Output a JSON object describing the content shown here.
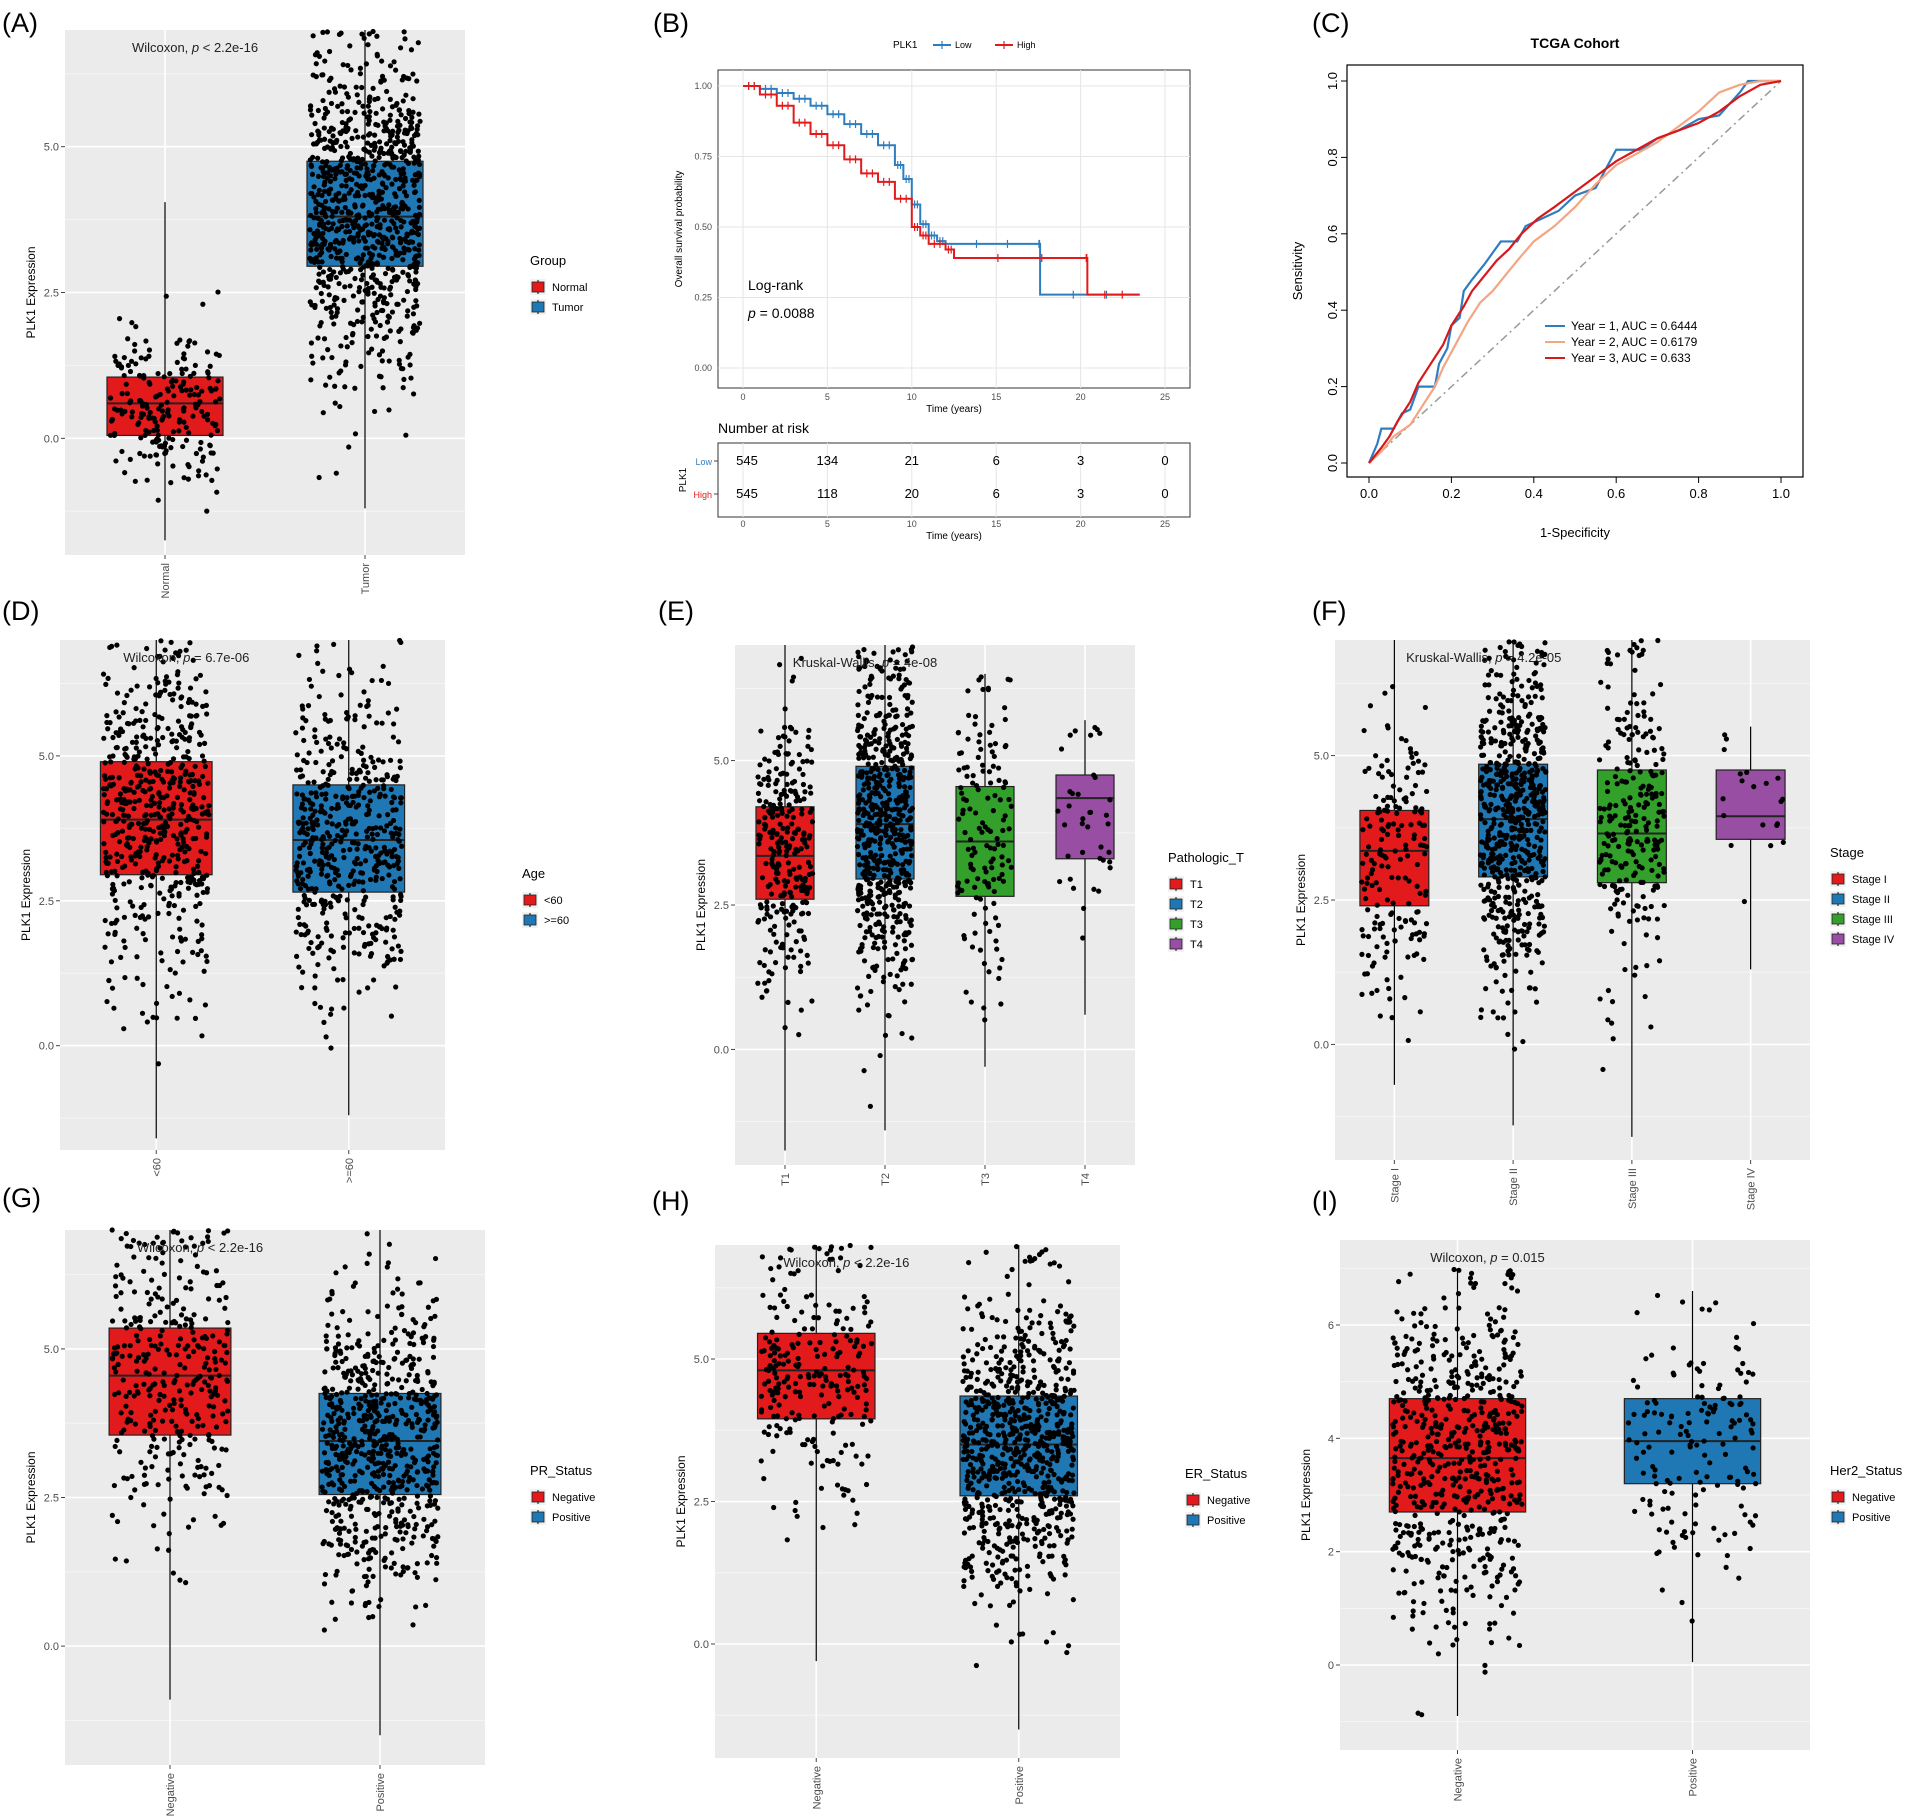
{
  "colors": {
    "red": "#E31A1C",
    "blue": "#1F78B4",
    "green": "#33A02C",
    "purple": "#984EA3",
    "panel_bg": "#EBEBEB",
    "km_low": "#2E7EBF",
    "km_high": "#E31A1C",
    "roc_y1": "#2E7EBF",
    "roc_y2": "#F4A582",
    "roc_y3": "#D7191C"
  },
  "chart_data": [
    {
      "id": "A",
      "type": "box",
      "panel_label": "(A)",
      "stat_prefix": "Wilcoxon, ",
      "stat_p": "p",
      "stat_suffix": " < 2.2e-16",
      "ylabel": "PLK1 Expression",
      "ylim": [
        -2.0,
        7.0
      ],
      "yticks": [
        0.0,
        2.5,
        5.0
      ],
      "ytick_labels": [
        "0.0",
        "2.5",
        "5.0"
      ],
      "categories": [
        "Normal",
        "Tumor"
      ],
      "legend_title": "Group",
      "legend_labels": [
        "Normal",
        "Tumor"
      ],
      "fill": [
        "red",
        "blue"
      ],
      "boxes": [
        {
          "q1": 0.05,
          "median": 0.6,
          "q3": 1.05,
          "min": -1.75,
          "max": 4.05,
          "n": 220
        },
        {
          "q1": 2.95,
          "median": 3.8,
          "q3": 4.75,
          "min": -1.2,
          "max": 7.0,
          "n": 900
        }
      ]
    },
    {
      "id": "B",
      "type": "km",
      "panel_label": "(B)",
      "legend_title": "PLK1",
      "legend_labels": [
        "Low",
        "High"
      ],
      "ylabel": "Overall survival probability",
      "xlabel": "Time (years)",
      "xlim": [
        0,
        25
      ],
      "ylim": [
        0,
        1
      ],
      "xticks": [
        0,
        5,
        10,
        15,
        20,
        25
      ],
      "xtick_labels": [
        "0",
        "5",
        "10",
        "15",
        "20",
        "25"
      ],
      "yticks": [
        0,
        0.25,
        0.5,
        0.75,
        1.0
      ],
      "ytick_labels": [
        "0.00",
        "0.25",
        "0.50",
        "0.75",
        "1.00"
      ],
      "annot_logrank": "Log-rank",
      "annot_p_italic": "p",
      "annot_p_value": " = 0.0088",
      "series": [
        {
          "name": "Low",
          "points": [
            [
              0,
              1.0
            ],
            [
              1,
              0.99
            ],
            [
              2,
              0.975
            ],
            [
              3,
              0.955
            ],
            [
              4,
              0.93
            ],
            [
              5,
              0.9
            ],
            [
              6,
              0.865
            ],
            [
              7,
              0.83
            ],
            [
              8,
              0.79
            ],
            [
              9,
              0.72
            ],
            [
              9.5,
              0.67
            ],
            [
              10,
              0.58
            ],
            [
              10.5,
              0.51
            ],
            [
              11,
              0.47
            ],
            [
              11.5,
              0.45
            ],
            [
              12,
              0.44
            ],
            [
              17.5,
              0.44
            ],
            [
              17.6,
              0.26
            ],
            [
              23.5,
              0.26
            ]
          ]
        },
        {
          "name": "High",
          "points": [
            [
              0,
              1.0
            ],
            [
              1,
              0.97
            ],
            [
              2,
              0.93
            ],
            [
              3,
              0.87
            ],
            [
              4,
              0.83
            ],
            [
              5,
              0.79
            ],
            [
              6,
              0.74
            ],
            [
              7,
              0.69
            ],
            [
              8,
              0.66
            ],
            [
              9,
              0.6
            ],
            [
              10,
              0.5
            ],
            [
              10.5,
              0.47
            ],
            [
              11,
              0.44
            ],
            [
              12,
              0.42
            ],
            [
              12.5,
              0.39
            ],
            [
              20.3,
              0.39
            ],
            [
              20.4,
              0.26
            ],
            [
              23.5,
              0.26
            ]
          ]
        }
      ],
      "risk_title": "Number at risk",
      "risk_ylabel": "PLK1",
      "risk_groups": [
        "Low",
        "High"
      ],
      "risk_values": [
        [
          "545",
          "134",
          "21",
          "6",
          "3",
          "0"
        ],
        [
          "545",
          "118",
          "20",
          "6",
          "3",
          "0"
        ]
      ]
    },
    {
      "id": "C",
      "type": "roc",
      "panel_label": "(C)",
      "title": "TCGA Cohort",
      "xlabel": "1-Specificity",
      "ylabel": "Sensitivity",
      "ticks": [
        0.0,
        0.2,
        0.4,
        0.6,
        0.8,
        1.0
      ],
      "tick_labels": [
        "0.0",
        "0.2",
        "0.4",
        "0.6",
        "0.8",
        "1.0"
      ],
      "series": [
        {
          "name": "Year = 1,  AUC = 0.6444",
          "color": "roc_y1",
          "points": [
            [
              0,
              0
            ],
            [
              0.02,
              0.05
            ],
            [
              0.03,
              0.09
            ],
            [
              0.06,
              0.09
            ],
            [
              0.08,
              0.13
            ],
            [
              0.1,
              0.14
            ],
            [
              0.12,
              0.2
            ],
            [
              0.16,
              0.2
            ],
            [
              0.17,
              0.26
            ],
            [
              0.19,
              0.3
            ],
            [
              0.2,
              0.36
            ],
            [
              0.22,
              0.38
            ],
            [
              0.23,
              0.45
            ],
            [
              0.25,
              0.48
            ],
            [
              0.28,
              0.52
            ],
            [
              0.3,
              0.55
            ],
            [
              0.32,
              0.58
            ],
            [
              0.36,
              0.58
            ],
            [
              0.38,
              0.62
            ],
            [
              0.42,
              0.64
            ],
            [
              0.46,
              0.66
            ],
            [
              0.5,
              0.7
            ],
            [
              0.55,
              0.72
            ],
            [
              0.58,
              0.78
            ],
            [
              0.6,
              0.82
            ],
            [
              0.66,
              0.82
            ],
            [
              0.7,
              0.85
            ],
            [
              0.75,
              0.87
            ],
            [
              0.8,
              0.9
            ],
            [
              0.85,
              0.91
            ],
            [
              0.9,
              0.97
            ],
            [
              0.92,
              1.0
            ],
            [
              1.0,
              1.0
            ]
          ]
        },
        {
          "name": "Year = 2,  AUC = 0.6179",
          "color": "roc_y2",
          "points": [
            [
              0,
              0
            ],
            [
              0.03,
              0.03
            ],
            [
              0.06,
              0.07
            ],
            [
              0.1,
              0.1
            ],
            [
              0.13,
              0.15
            ],
            [
              0.16,
              0.2
            ],
            [
              0.18,
              0.25
            ],
            [
              0.21,
              0.31
            ],
            [
              0.24,
              0.37
            ],
            [
              0.27,
              0.42
            ],
            [
              0.3,
              0.45
            ],
            [
              0.33,
              0.49
            ],
            [
              0.36,
              0.53
            ],
            [
              0.4,
              0.58
            ],
            [
              0.45,
              0.62
            ],
            [
              0.5,
              0.67
            ],
            [
              0.55,
              0.73
            ],
            [
              0.6,
              0.78
            ],
            [
              0.65,
              0.81
            ],
            [
              0.7,
              0.84
            ],
            [
              0.75,
              0.88
            ],
            [
              0.8,
              0.92
            ],
            [
              0.85,
              0.97
            ],
            [
              0.9,
              0.99
            ],
            [
              0.95,
              1.0
            ],
            [
              1.0,
              1.0
            ]
          ]
        },
        {
          "name": "Year = 3,  AUC = 0.633",
          "color": "roc_y3",
          "points": [
            [
              0,
              0
            ],
            [
              0.03,
              0.04
            ],
            [
              0.05,
              0.07
            ],
            [
              0.07,
              0.11
            ],
            [
              0.1,
              0.16
            ],
            [
              0.12,
              0.21
            ],
            [
              0.15,
              0.26
            ],
            [
              0.18,
              0.31
            ],
            [
              0.2,
              0.36
            ],
            [
              0.23,
              0.41
            ],
            [
              0.25,
              0.45
            ],
            [
              0.28,
              0.49
            ],
            [
              0.31,
              0.53
            ],
            [
              0.34,
              0.56
            ],
            [
              0.37,
              0.6
            ],
            [
              0.41,
              0.64
            ],
            [
              0.45,
              0.67
            ],
            [
              0.5,
              0.71
            ],
            [
              0.55,
              0.75
            ],
            [
              0.6,
              0.79
            ],
            [
              0.65,
              0.82
            ],
            [
              0.7,
              0.85
            ],
            [
              0.75,
              0.87
            ],
            [
              0.8,
              0.89
            ],
            [
              0.85,
              0.92
            ],
            [
              0.9,
              0.96
            ],
            [
              0.95,
              0.99
            ],
            [
              1.0,
              1.0
            ]
          ]
        }
      ]
    },
    {
      "id": "D",
      "type": "box",
      "panel_label": "(D)",
      "stat_prefix": "Wilcoxon, ",
      "stat_p": "p",
      "stat_suffix": " = 6.7e-06",
      "ylabel": "PLK1 Expression",
      "ylim": [
        -1.8,
        7.0
      ],
      "yticks": [
        0.0,
        2.5,
        5.0
      ],
      "ytick_labels": [
        "0.0",
        "2.5",
        "5.0"
      ],
      "categories": [
        "<60",
        ">=60"
      ],
      "legend_title": "Age",
      "legend_labels": [
        "<60",
        ">=60"
      ],
      "fill": [
        "red",
        "blue"
      ],
      "boxes": [
        {
          "q1": 2.95,
          "median": 3.9,
          "q3": 4.9,
          "min": -1.6,
          "max": 7.0,
          "n": 560
        },
        {
          "q1": 2.65,
          "median": 3.55,
          "q3": 4.5,
          "min": -1.2,
          "max": 7.0,
          "n": 520
        }
      ]
    },
    {
      "id": "E",
      "type": "box",
      "panel_label": "(E)",
      "stat_prefix": "Kruskal-Wallis, ",
      "stat_p": "p",
      "stat_suffix": " = 4e-08",
      "ylabel": "PLK1 Expression",
      "ylim": [
        -2.0,
        7.0
      ],
      "yticks": [
        0.0,
        2.5,
        5.0
      ],
      "ytick_labels": [
        "0.0",
        "2.5",
        "5.0"
      ],
      "categories": [
        "T1",
        "T2",
        "T3",
        "T4"
      ],
      "legend_title": "Pathologic_T",
      "legend_labels": [
        "T1",
        "T2",
        "T3",
        "T4"
      ],
      "fill": [
        "red",
        "blue",
        "green",
        "purple"
      ],
      "boxes": [
        {
          "q1": 2.6,
          "median": 3.35,
          "q3": 4.2,
          "min": -1.75,
          "max": 7.0,
          "n": 280
        },
        {
          "q1": 2.95,
          "median": 3.9,
          "q3": 4.9,
          "min": -1.4,
          "max": 7.0,
          "n": 620
        },
        {
          "q1": 2.65,
          "median": 3.6,
          "q3": 4.55,
          "min": -0.3,
          "max": 6.5,
          "n": 140
        },
        {
          "q1": 3.3,
          "median": 4.35,
          "q3": 4.75,
          "min": 0.6,
          "max": 5.7,
          "n": 38
        }
      ]
    },
    {
      "id": "F",
      "type": "box",
      "panel_label": "(F)",
      "stat_prefix": "Kruskal-Wallis, ",
      "stat_p": "p",
      "stat_suffix": " = 4.2e-05",
      "ylabel": "PLK1 Expression",
      "ylim": [
        -2.0,
        7.0
      ],
      "yticks": [
        0.0,
        2.5,
        5.0
      ],
      "ytick_labels": [
        "0.0",
        "2.5",
        "5.0"
      ],
      "categories": [
        "Stage I",
        "Stage II",
        "Stage III",
        "Stage IV"
      ],
      "legend_title": "Stage",
      "legend_labels": [
        "Stage I",
        "Stage II",
        "Stage III",
        "Stage IV"
      ],
      "fill": [
        "red",
        "blue",
        "green",
        "purple"
      ],
      "boxes": [
        {
          "q1": 2.4,
          "median": 3.35,
          "q3": 4.05,
          "min": -0.7,
          "max": 7.0,
          "n": 180
        },
        {
          "q1": 2.9,
          "median": 3.9,
          "q3": 4.85,
          "min": -1.4,
          "max": 7.0,
          "n": 620
        },
        {
          "q1": 2.8,
          "median": 3.65,
          "q3": 4.75,
          "min": -1.6,
          "max": 7.0,
          "n": 250
        },
        {
          "q1": 3.55,
          "median": 3.95,
          "q3": 4.75,
          "min": 1.3,
          "max": 5.5,
          "n": 20
        }
      ]
    },
    {
      "id": "G",
      "type": "box",
      "panel_label": "(G)",
      "stat_prefix": "Wilcoxon, ",
      "stat_p": "p",
      "stat_suffix": " < 2.2e-16",
      "ylabel": "PLK1 Expression",
      "ylim": [
        -2.0,
        7.0
      ],
      "yticks": [
        0.0,
        2.5,
        5.0
      ],
      "ytick_labels": [
        "0.0",
        "2.5",
        "5.0"
      ],
      "categories": [
        "Negative",
        "Positive"
      ],
      "legend_title": "PR_Status",
      "legend_labels": [
        "Negative",
        "Positive"
      ],
      "fill": [
        "red",
        "blue"
      ],
      "boxes": [
        {
          "q1": 3.55,
          "median": 4.55,
          "q3": 5.35,
          "min": -0.9,
          "max": 7.0,
          "n": 340
        },
        {
          "q1": 2.55,
          "median": 3.45,
          "q3": 4.25,
          "min": -1.5,
          "max": 7.0,
          "n": 700
        }
      ]
    },
    {
      "id": "H",
      "type": "box",
      "panel_label": "(H)",
      "stat_prefix": "Wilcoxon, ",
      "stat_p": "p",
      "stat_suffix": " < 2.2e-16",
      "ylabel": "PLK1 Expression",
      "ylim": [
        -2.0,
        7.0
      ],
      "yticks": [
        0.0,
        2.5,
        5.0
      ],
      "ytick_labels": [
        "0.0",
        "2.5",
        "5.0"
      ],
      "categories": [
        "Negative",
        "Positive"
      ],
      "legend_title": "ER_Status",
      "legend_labels": [
        "Negative",
        "Positive"
      ],
      "fill": [
        "red",
        "blue"
      ],
      "boxes": [
        {
          "q1": 3.95,
          "median": 4.8,
          "q3": 5.45,
          "min": -0.3,
          "max": 7.0,
          "n": 240
        },
        {
          "q1": 2.6,
          "median": 3.5,
          "q3": 4.35,
          "min": -1.5,
          "max": 7.0,
          "n": 800
        }
      ]
    },
    {
      "id": "I",
      "type": "box",
      "panel_label": "(I)",
      "stat_prefix": "Wilcoxon, ",
      "stat_p": "p",
      "stat_suffix": " = 0.015",
      "ylabel": "PLK1 Expression",
      "ylim": [
        -1.5,
        7.5
      ],
      "yticks": [
        0,
        2,
        4,
        6
      ],
      "ytick_labels": [
        "0",
        "2",
        "4",
        "6"
      ],
      "categories": [
        "Negative",
        "Positive"
      ],
      "legend_title": "Her2_Status",
      "legend_labels": [
        "Negative",
        "Positive"
      ],
      "fill": [
        "red",
        "blue"
      ],
      "boxes": [
        {
          "q1": 2.7,
          "median": 3.65,
          "q3": 4.7,
          "min": -0.9,
          "max": 7.0,
          "n": 620
        },
        {
          "q1": 3.2,
          "median": 3.95,
          "q3": 4.7,
          "min": 0.05,
          "max": 6.6,
          "n": 160
        }
      ]
    }
  ]
}
